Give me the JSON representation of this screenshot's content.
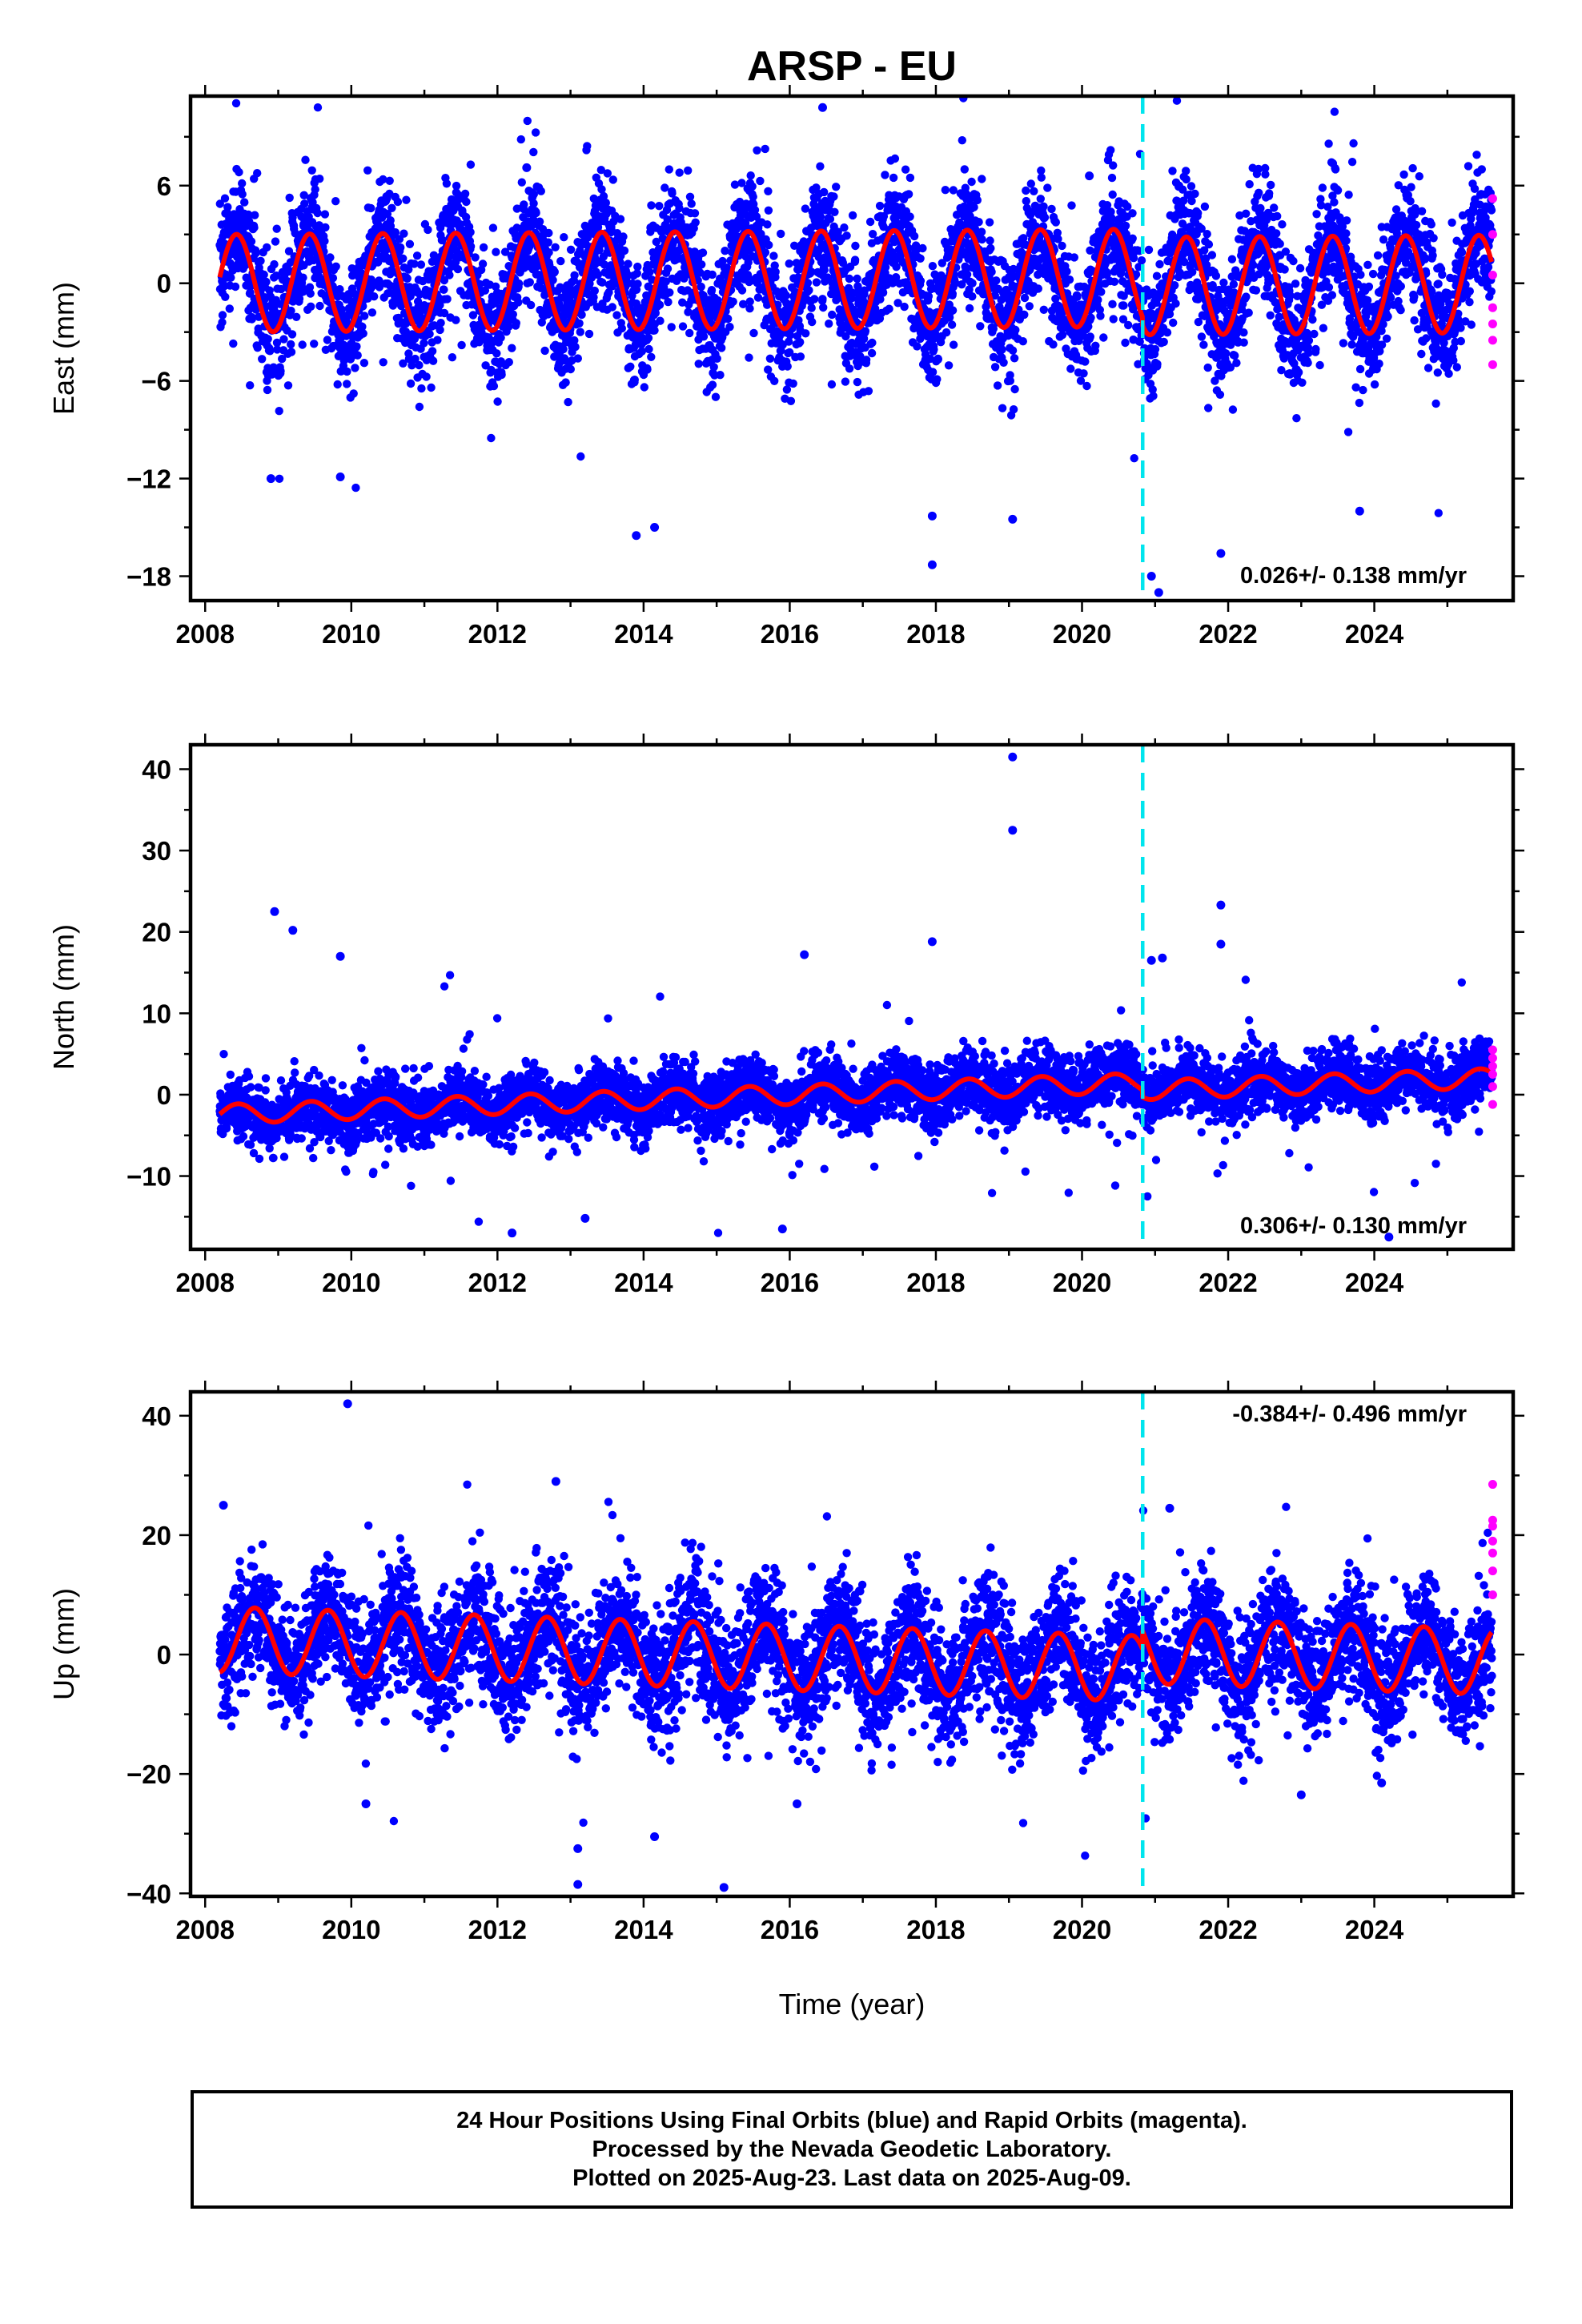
{
  "figure": {
    "title": "ARSP - EU",
    "xlabel": "Time (year)"
  },
  "colors": {
    "final_orbits": "#0000ff",
    "rapid_orbits": "#ff00ff",
    "model": "#ff0000",
    "event_line": "#00e5ee"
  },
  "footer": {
    "line1": "24 Hour Positions Using Final Orbits (blue) and Rapid Orbits (magenta).",
    "line2": "Processed by the Nevada Geodetic Laboratory.",
    "line3": "Plotted on 2025-Aug-23. Last data on 2025-Aug-09."
  },
  "chart_data": [
    {
      "type": "scatter",
      "ylabel": "East (mm)",
      "rate_label": "0.026+/- 0.138 mm/yr",
      "xlim": [
        2007.8,
        2025.9
      ],
      "ylim": [
        -19.5,
        11.5
      ],
      "x_ticks": [
        2008,
        2010,
        2012,
        2014,
        2016,
        2018,
        2020,
        2022,
        2024
      ],
      "y_ticks": [
        -18,
        -12,
        -6,
        0,
        6
      ],
      "event_line_x": 2020.83,
      "data_start": 2008.2,
      "data_end": 2025.61,
      "model": {
        "offset": 0.0,
        "rate": 0.026,
        "amplitude": 3.0,
        "peak_year_fraction": 0.43,
        "amplitude_after_event": 3.0,
        "offset_after_event": -0.5
      },
      "scatter": {
        "sigma": 1.8,
        "outlier_sigma": 4.2,
        "outlier_fraction": 0.04
      },
      "outliers": [
        [
          2016.45,
          10.8
        ],
        [
          2008.9,
          -12.0
        ],
        [
          2009.85,
          -11.9
        ],
        [
          2013.9,
          -15.5
        ],
        [
          2014.15,
          -15.0
        ],
        [
          2017.95,
          -14.3
        ],
        [
          2017.95,
          -17.3
        ],
        [
          2019.05,
          -14.5
        ],
        [
          2020.95,
          -18.0
        ],
        [
          2021.05,
          -19.0
        ],
        [
          2021.9,
          -16.6
        ],
        [
          2023.8,
          -14.0
        ],
        [
          2012.4,
          7.1
        ],
        [
          2020.1,
          6.6
        ]
      ],
      "rapid": [
        [
          2025.62,
          5.2
        ],
        [
          2025.62,
          3.0
        ],
        [
          2025.62,
          0.5
        ],
        [
          2025.62,
          -1.5
        ],
        [
          2025.62,
          -2.5
        ],
        [
          2025.62,
          -3.5
        ],
        [
          2025.62,
          -5.0
        ]
      ]
    },
    {
      "type": "scatter",
      "ylabel": "North (mm)",
      "rate_label": "0.306+/- 0.130 mm/yr",
      "xlim": [
        2007.8,
        2025.9
      ],
      "ylim": [
        -19,
        43
      ],
      "x_ticks": [
        2008,
        2010,
        2012,
        2014,
        2016,
        2018,
        2020,
        2022,
        2024
      ],
      "y_ticks": [
        -10,
        0,
        10,
        20,
        30,
        40
      ],
      "event_line_x": 2020.83,
      "data_start": 2008.2,
      "data_end": 2025.61,
      "model": {
        "offset": -2.4,
        "rate": 0.306,
        "amplitude": 1.2,
        "peak_year_fraction": 0.45,
        "amplitude_after_event": 1.2,
        "offset_after_event": -0.9
      },
      "scatter": {
        "sigma": 1.9,
        "outlier_sigma": 6.0,
        "outlier_fraction": 0.03
      },
      "outliers": [
        [
          2019.05,
          41.5
        ],
        [
          2019.05,
          32.5
        ],
        [
          2008.95,
          22.5
        ],
        [
          2009.2,
          20.2
        ],
        [
          2021.9,
          23.3
        ],
        [
          2021.9,
          18.5
        ],
        [
          2017.95,
          18.8
        ],
        [
          2016.2,
          17.2
        ],
        [
          2009.85,
          17.0
        ],
        [
          2020.95,
          16.5
        ],
        [
          2021.1,
          16.8
        ],
        [
          2012.2,
          -17.0
        ],
        [
          2015.9,
          -16.5
        ],
        [
          2024.2,
          -17.5
        ],
        [
          2013.2,
          -15.2
        ]
      ],
      "rapid": [
        [
          2025.62,
          5.5
        ],
        [
          2025.62,
          4.5
        ],
        [
          2025.62,
          3.5
        ],
        [
          2025.62,
          2.5
        ],
        [
          2025.62,
          1.0
        ],
        [
          2025.62,
          -1.2
        ]
      ]
    },
    {
      "type": "scatter",
      "ylabel": "Up (mm)",
      "rate_label": "-0.384+/- 0.496 mm/yr",
      "xlim": [
        2007.8,
        2025.9
      ],
      "ylim": [
        -40.5,
        44
      ],
      "x_ticks": [
        2008,
        2010,
        2012,
        2014,
        2016,
        2018,
        2020,
        2022,
        2024
      ],
      "y_ticks": [
        -40,
        -20,
        0,
        20,
        40
      ],
      "event_line_x": 2020.83,
      "data_start": 2008.2,
      "data_end": 2025.61,
      "model": {
        "offset": 2.5,
        "rate": -0.384,
        "amplitude": 5.5,
        "peak_year_fraction": 0.68,
        "amplitude_after_event": 5.5,
        "offset_after_event": 3.0
      },
      "scatter": {
        "sigma": 5.0,
        "outlier_sigma": 11.0,
        "outlier_fraction": 0.03
      },
      "outliers": [
        [
          2009.95,
          42.0
        ],
        [
          2012.8,
          29.0
        ],
        [
          2008.25,
          25.0
        ],
        [
          2021.2,
          24.5
        ],
        [
          2013.1,
          -32.5
        ],
        [
          2013.1,
          -38.5
        ],
        [
          2014.15,
          -30.5
        ],
        [
          2015.1,
          -39.0
        ],
        [
          2010.2,
          -25.0
        ],
        [
          2016.1,
          -25.0
        ],
        [
          2023.0,
          -23.5
        ],
        [
          2024.1,
          -21.5
        ]
      ],
      "rapid": [
        [
          2025.62,
          28.5
        ],
        [
          2025.62,
          22.5
        ],
        [
          2025.62,
          21.5
        ],
        [
          2025.62,
          19.0
        ],
        [
          2025.62,
          17.0
        ],
        [
          2025.62,
          14.0
        ],
        [
          2025.62,
          10.0
        ]
      ]
    }
  ]
}
